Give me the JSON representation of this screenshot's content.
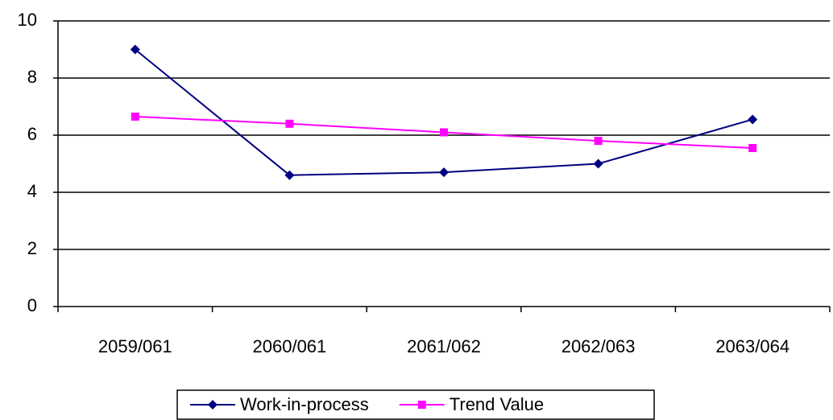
{
  "chart_data": {
    "type": "line",
    "categories": [
      "2059/061",
      "2060/061",
      "2061/062",
      "2062/063",
      "2063/064"
    ],
    "series": [
      {
        "name": "Work-in-process",
        "color": "#000080",
        "marker": "diamond",
        "values": [
          9.0,
          4.6,
          4.7,
          5.0,
          6.55
        ]
      },
      {
        "name": "Trend Value",
        "color": "#ff00ff",
        "marker": "square",
        "values": [
          6.65,
          6.4,
          6.1,
          5.8,
          5.55
        ]
      }
    ],
    "ylim": [
      0,
      10
    ],
    "yticks": [
      0,
      2,
      4,
      6,
      8,
      10
    ],
    "grid": true,
    "legend": "bottom"
  }
}
